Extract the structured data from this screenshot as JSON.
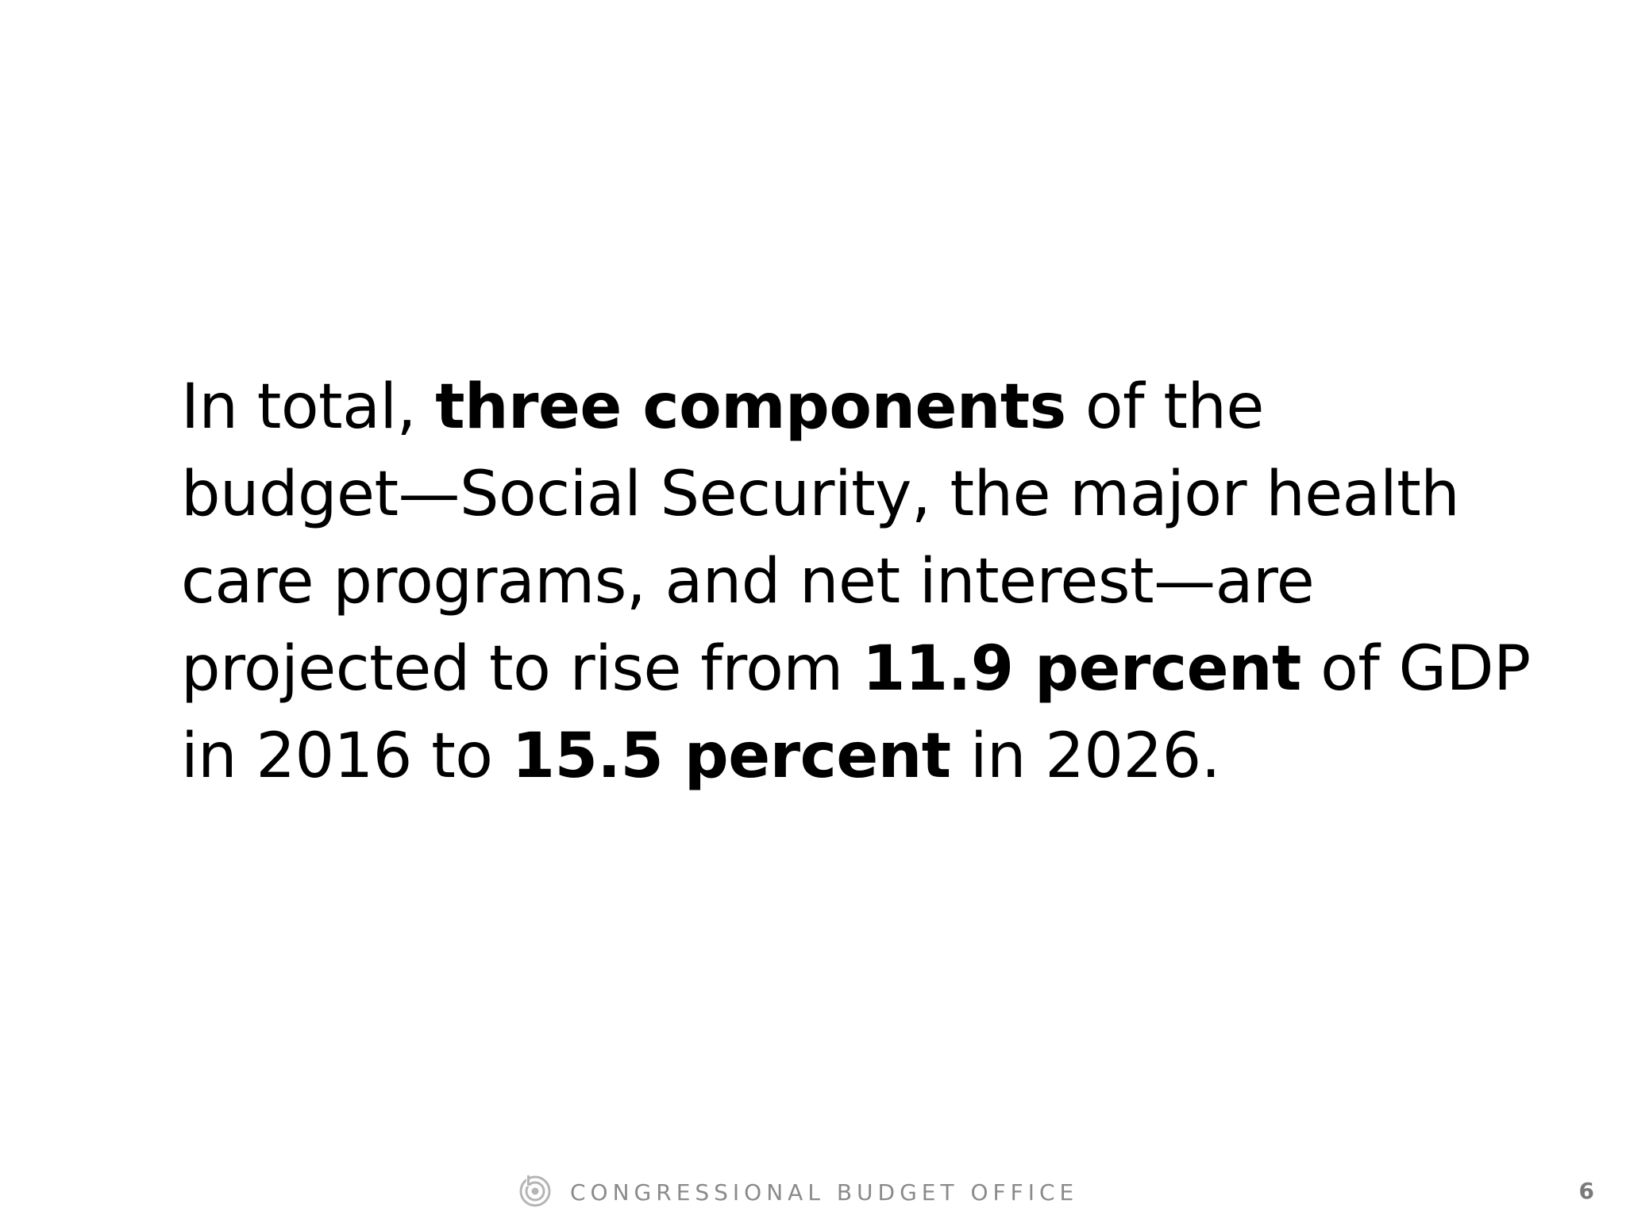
{
  "statement": {
    "line1": {
      "t1": "In total, ",
      "b1": "three components",
      "t2": " of the"
    },
    "line2": {
      "t1": "budget—Social Security, the major health"
    },
    "line3": {
      "t1": "care programs, and net interest—are"
    },
    "line4": {
      "t1": "projected to rise from ",
      "b1": "11.9 percent",
      "t2": " of GDP"
    },
    "line5": {
      "t1": "in 2016 to ",
      "b1": "15.5 percent",
      "t2": " in 2026."
    }
  },
  "footer": {
    "organization": "CONGRESSIONAL BUDGET OFFICE",
    "logo_icon": "cbo-logo-icon",
    "page_number": "6"
  },
  "colors": {
    "background": "#ffffff",
    "text": "#000000",
    "footer_text": "#8a8a8a",
    "logo": "#b5b5b5"
  }
}
